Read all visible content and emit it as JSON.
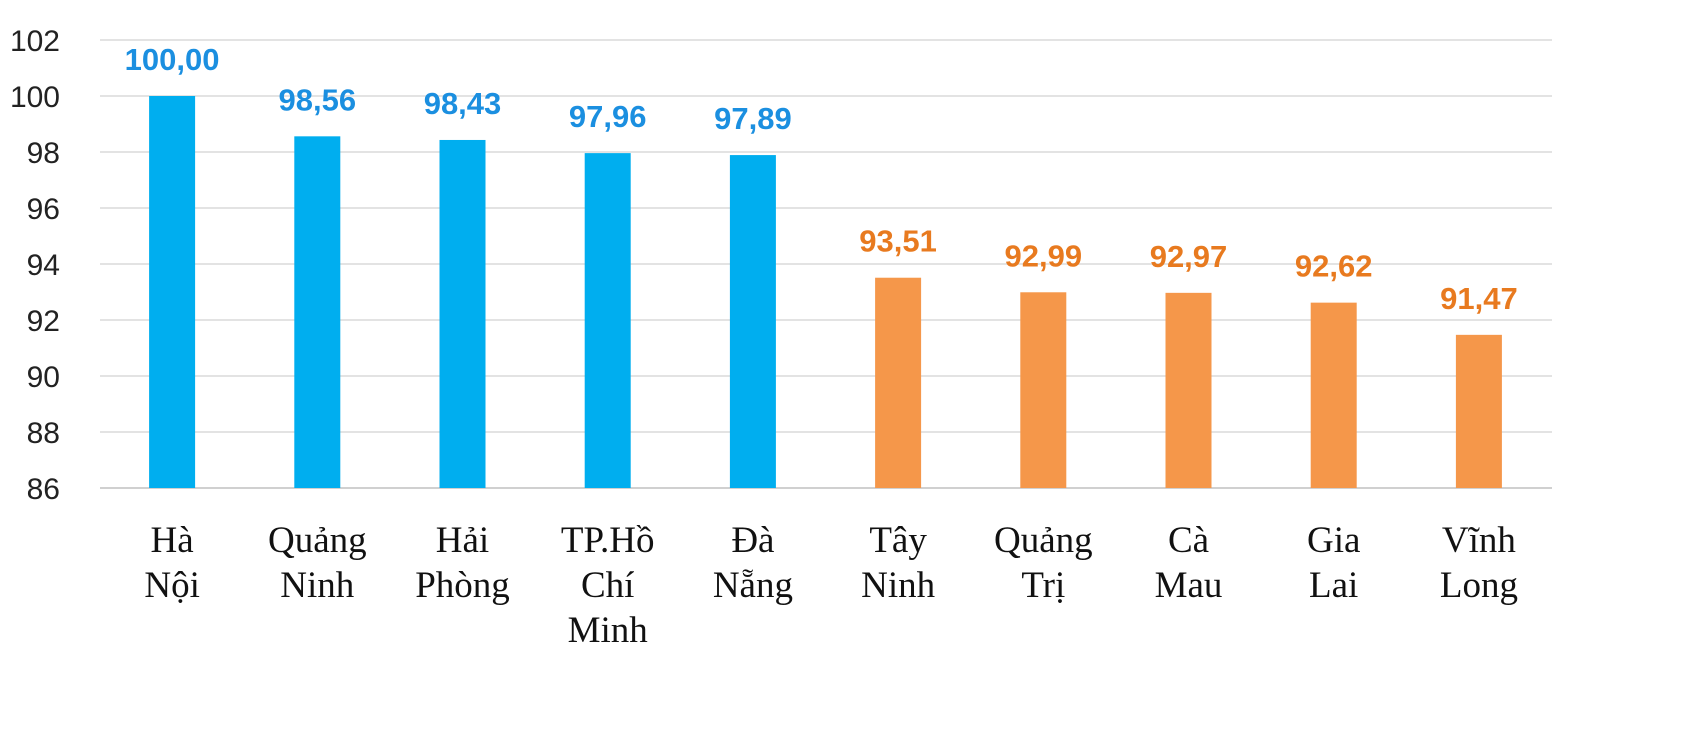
{
  "chart_data": {
    "type": "bar",
    "categories": [
      [
        "Hà",
        "Nội"
      ],
      [
        "Quảng",
        "Ninh"
      ],
      [
        "Hải",
        "Phòng"
      ],
      [
        "TP.Hồ",
        "Chí",
        "Minh"
      ],
      [
        "Đà",
        "Nẵng"
      ],
      [
        "Tây",
        "Ninh"
      ],
      [
        "Quảng",
        "Trị"
      ],
      [
        "Cà",
        "Mau"
      ],
      [
        "Gia",
        "Lai"
      ],
      [
        "Vĩnh",
        "Long"
      ]
    ],
    "values": [
      100.0,
      98.56,
      98.43,
      97.96,
      97.89,
      93.51,
      92.99,
      92.97,
      92.62,
      91.47
    ],
    "value_labels": [
      "100,00",
      "98,56",
      "98,43",
      "97,96",
      "97,89",
      "93,51",
      "92,99",
      "92,97",
      "92,62",
      "91,47"
    ],
    "group": [
      "top",
      "top",
      "top",
      "top",
      "top",
      "bottom",
      "bottom",
      "bottom",
      "bottom",
      "bottom"
    ],
    "colors": {
      "top_bar": "#00AEEF",
      "top_label": "#1B8FE0",
      "bottom_bar": "#F5974A",
      "bottom_label": "#E87A1F",
      "grid": "#E3E3E3"
    },
    "ylim": [
      86,
      102
    ],
    "yticks": [
      86,
      88,
      90,
      92,
      94,
      96,
      98,
      100,
      102
    ],
    "grid": true,
    "title": "",
    "xlabel": "",
    "ylabel": ""
  }
}
